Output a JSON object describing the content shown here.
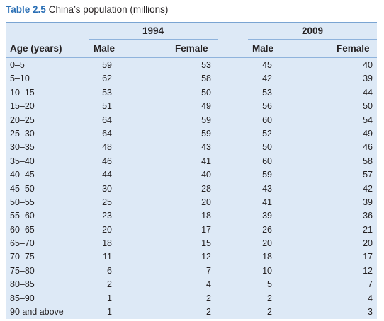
{
  "caption": {
    "number": "Table 2.5",
    "title": "China’s population (millions)"
  },
  "table": {
    "groups": [
      "1994",
      "2009"
    ],
    "headers": [
      "Age (years)",
      "Male",
      "Female",
      "Male",
      "Female"
    ],
    "rows": [
      [
        "0–5",
        "59",
        "53",
        "45",
        "40"
      ],
      [
        "5–10",
        "62",
        "58",
        "42",
        "39"
      ],
      [
        "10–15",
        "53",
        "50",
        "53",
        "44"
      ],
      [
        "15–20",
        "51",
        "49",
        "56",
        "50"
      ],
      [
        "20–25",
        "64",
        "59",
        "60",
        "54"
      ],
      [
        "25–30",
        "64",
        "59",
        "52",
        "49"
      ],
      [
        "30–35",
        "48",
        "43",
        "50",
        "46"
      ],
      [
        "35–40",
        "46",
        "41",
        "60",
        "58"
      ],
      [
        "40–45",
        "44",
        "40",
        "59",
        "57"
      ],
      [
        "45–50",
        "30",
        "28",
        "43",
        "42"
      ],
      [
        "50–55",
        "25",
        "20",
        "41",
        "39"
      ],
      [
        "55–60",
        "23",
        "18",
        "39",
        "36"
      ],
      [
        "60–65",
        "20",
        "17",
        "26",
        "21"
      ],
      [
        "65–70",
        "18",
        "15",
        "20",
        "20"
      ],
      [
        "70–75",
        "11",
        "12",
        "18",
        "17"
      ],
      [
        "75–80",
        "6",
        "7",
        "10",
        "12"
      ],
      [
        "80–85",
        "2",
        "4",
        "5",
        "7"
      ],
      [
        "85–90",
        "1",
        "2",
        "2",
        "4"
      ],
      [
        "90 and above",
        "1",
        "2",
        "2",
        "3"
      ]
    ]
  }
}
